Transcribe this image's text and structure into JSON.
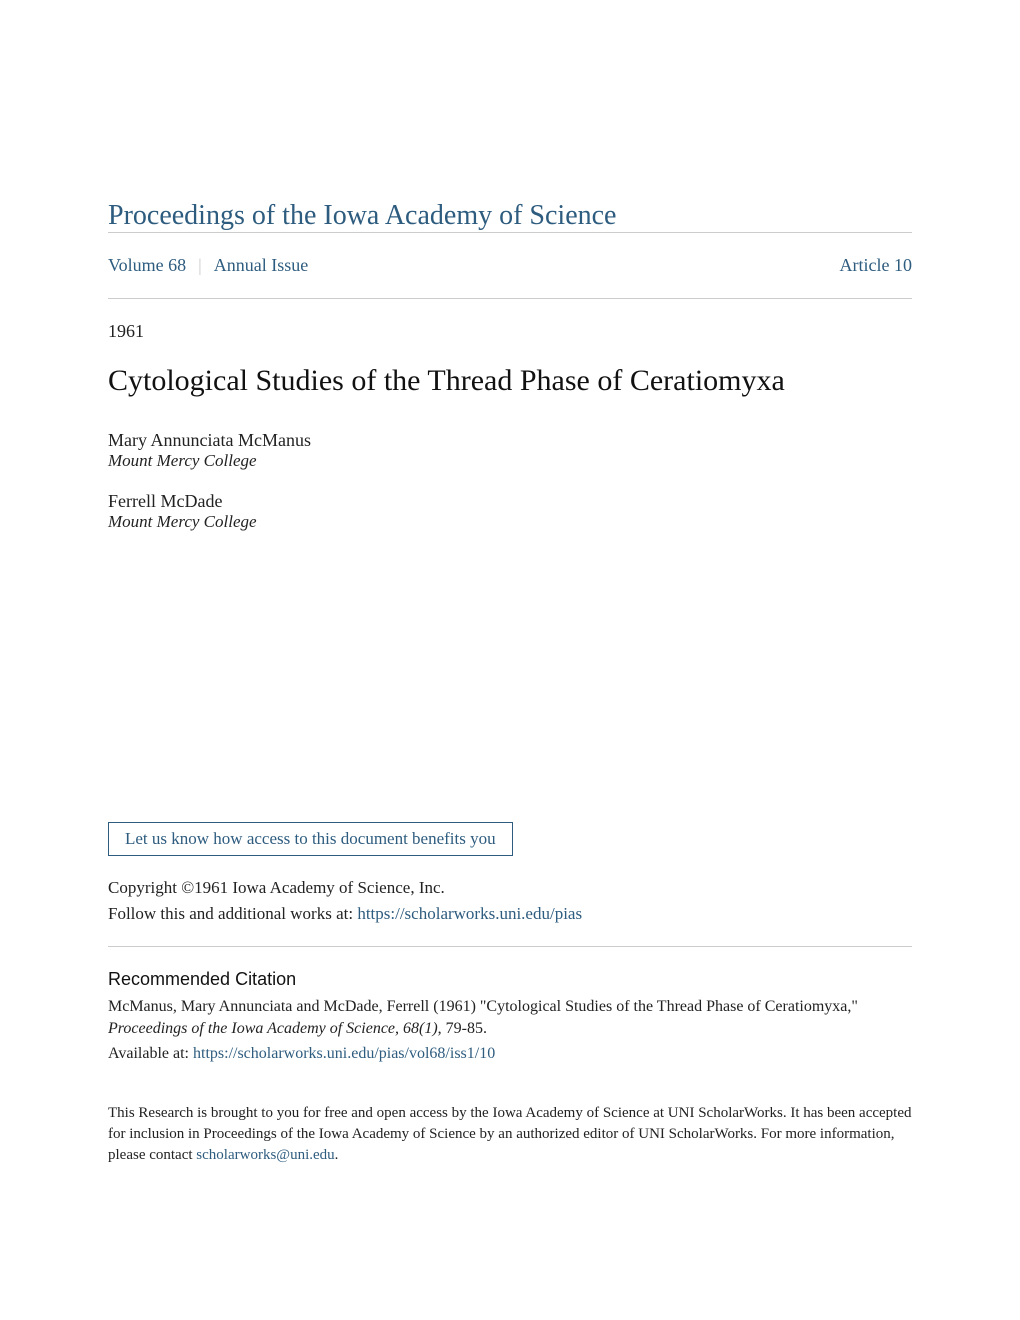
{
  "journal_title": "Proceedings of the Iowa Academy of Science",
  "meta": {
    "volume": "Volume 68",
    "issue": "Annual Issue",
    "article": "Article 10",
    "separator": "|"
  },
  "year": "1961",
  "article_title": "Cytological Studies of the Thread Phase of Ceratiomyxa",
  "authors": [
    {
      "name": "Mary Annunciata McManus",
      "affiliation": "Mount Mercy College"
    },
    {
      "name": "Ferrell McDade",
      "affiliation": "Mount Mercy College"
    }
  ],
  "benefits_button": "Let us know how access to this document benefits you",
  "copyright": "Copyright ©1961 Iowa Academy of Science, Inc.",
  "follow_text": "Follow this and additional works at: ",
  "follow_link": "https://scholarworks.uni.edu/pias",
  "recommended_heading": "Recommended Citation",
  "citation_line1": "McManus, Mary Annunciata and McDade, Ferrell (1961) \"Cytological Studies of the Thread Phase of Ceratiomyxa,\" ",
  "citation_italic": "Proceedings of the Iowa Academy of Science, 68(1)",
  "citation_tail": ", 79-85.",
  "available_label": "Available at: ",
  "available_link": "https://scholarworks.uni.edu/pias/vol68/iss1/10",
  "footer_text1": "This Research is brought to you for free and open access by the Iowa Academy of Science at UNI ScholarWorks. It has been accepted for inclusion in Proceedings of the Iowa Academy of Science by an authorized editor of UNI ScholarWorks. For more information, please contact ",
  "footer_email": "scholarworks@uni.edu",
  "footer_tail": ".",
  "colors": {
    "link_color": "#2e5c7f",
    "text_color": "#222222",
    "divider_color": "#cccccc",
    "background": "#ffffff"
  },
  "typography": {
    "journal_title_size": 28,
    "article_title_size": 30,
    "body_size": 17,
    "footer_size": 15
  }
}
